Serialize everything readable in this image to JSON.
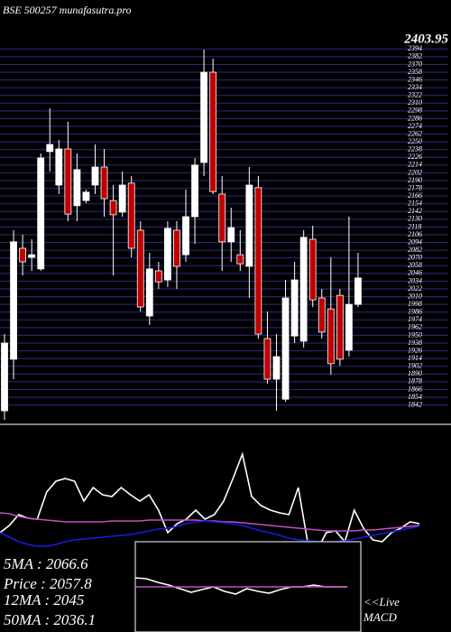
{
  "chart_data": [
    {
      "type": "candlestick",
      "title": "BSE 500257 munafasutra.pro",
      "last_label": "2403.95",
      "ylim": [
        1819,
        2414
      ],
      "yticks": [
        1842,
        1854,
        1866,
        1878,
        1890,
        1902,
        1914,
        1926,
        1938,
        1950,
        1962,
        1974,
        1986,
        1998,
        2010,
        2022,
        2034,
        2046,
        2058,
        2070,
        2082,
        2094,
        2106,
        2118,
        2130,
        2142,
        2154,
        2166,
        2178,
        2190,
        2202,
        2214,
        2226,
        2238,
        2250,
        2262,
        2274,
        2286,
        2298,
        2310,
        2322,
        2334,
        2346,
        2358,
        2370,
        2382,
        2394
      ],
      "grid": true,
      "grid_color": "#2b2b8c",
      "up_color": "#ffffff",
      "down_color": "#c00000",
      "open": [
        1833,
        1913,
        2085,
        2071,
        2053,
        2235,
        2183,
        2239,
        2151,
        2159,
        2183,
        2211,
        2159,
        2141,
        2186,
        2113,
        1980,
        2050,
        2036,
        2113,
        2075,
        2134,
        2218,
        2358,
        2169,
        2095,
        2075,
        2057,
        2179,
        1945,
        1882,
        1851,
        1949,
        1941,
        2099,
        2008,
        1991,
        2012,
        1927,
        1998
      ],
      "high": [
        1952,
        2113,
        2106,
        2099,
        2232,
        2302,
        2253,
        2281,
        2232,
        2176,
        2246,
        2239,
        2183,
        2204,
        2197,
        2127,
        2078,
        2064,
        2127,
        2127,
        2176,
        2225,
        2393,
        2379,
        2197,
        2148,
        2113,
        2211,
        2197,
        1987,
        1952,
        2036,
        2064,
        2113,
        2120,
        2022,
        2071,
        2022,
        2134,
        2078
      ],
      "low": [
        1819,
        1882,
        2043,
        2050,
        2050,
        2204,
        2169,
        2127,
        2127,
        2155,
        2169,
        2134,
        2043,
        2134,
        2071,
        1987,
        1966,
        2022,
        2025,
        2022,
        2064,
        2092,
        2197,
        2169,
        2050,
        2064,
        2050,
        2008,
        1945,
        1875,
        1833,
        1847,
        1938,
        1931,
        1994,
        1945,
        1889,
        1903,
        1917,
        1994
      ],
      "close": [
        1938,
        2095,
        2064,
        2075,
        2225,
        2246,
        2239,
        2138,
        2207,
        2172,
        2211,
        2162,
        2137,
        2183,
        2085,
        1994,
        2053,
        2033,
        2116,
        2057,
        2134,
        2214,
        2358,
        2173,
        2095,
        2117,
        2061,
        2183,
        1952,
        1882,
        1917,
        2008,
        2036,
        2102,
        2005,
        1955,
        1906,
        1913,
        1998,
        2039
      ]
    },
    {
      "type": "line",
      "ylim": [
        0,
        230
      ],
      "annotations": [
        "5MA : 2066.6",
        "Price : 2057.8",
        "12MA : 2045",
        "50MA : 2036.1"
      ],
      "series": [
        {
          "color": "#ffffff",
          "values": [
            110,
            118,
            130,
            126,
            125,
            155,
            167,
            170,
            167,
            145,
            160,
            152,
            150,
            160,
            152,
            145,
            152,
            135,
            110,
            120,
            125,
            135,
            125,
            130,
            145,
            170,
            197,
            150,
            140,
            135,
            132,
            130,
            160,
            100,
            90,
            110,
            112,
            100,
            135,
            115,
            102,
            100,
            110,
            115,
            122,
            120
          ]
        },
        {
          "color": "#c050c0",
          "values": [
            132,
            131,
            128,
            126,
            125,
            124,
            123,
            122,
            122,
            122,
            122,
            122,
            123,
            123,
            123,
            123,
            124,
            124,
            124,
            124,
            124,
            124,
            123,
            123,
            122,
            122,
            121,
            120,
            119,
            118,
            117,
            116,
            115,
            114,
            113,
            112,
            112,
            112,
            112,
            113,
            113,
            114,
            115,
            116,
            117,
            118
          ]
        },
        {
          "color": "#1a1ae0",
          "values": [
            110,
            105,
            100,
            97,
            95,
            95,
            97,
            100,
            102,
            103,
            104,
            105,
            106,
            107,
            108,
            110,
            112,
            114,
            115,
            117,
            120,
            122,
            123,
            122,
            121,
            120,
            118,
            115,
            112,
            110,
            107,
            104,
            102,
            101,
            100,
            100,
            100,
            101,
            103,
            105,
            107,
            109,
            111,
            113,
            115,
            117
          ]
        }
      ]
    },
    {
      "type": "line",
      "title": "MACD",
      "annotation": "<<Live",
      "ylim": [
        0,
        100
      ],
      "series": [
        {
          "color": "#ffffff",
          "values": [
            60,
            59,
            55,
            52,
            48,
            44,
            47,
            50,
            45,
            42,
            48,
            45,
            43,
            47,
            50,
            50,
            52,
            50,
            50,
            50
          ]
        },
        {
          "color": "#c050c0",
          "values": [
            50,
            50,
            50,
            50,
            50,
            50,
            50,
            50,
            50,
            50,
            50,
            50,
            50,
            50,
            50,
            50,
            50,
            50,
            50,
            50
          ]
        }
      ]
    }
  ]
}
